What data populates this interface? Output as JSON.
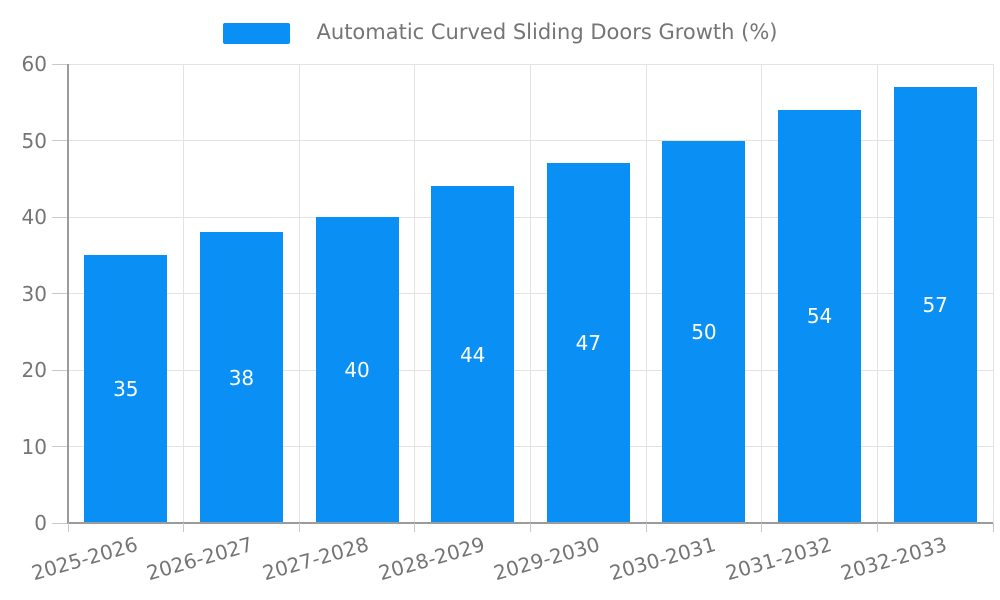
{
  "legend": {
    "label": "Automatic Curved Sliding Doors Growth (%)"
  },
  "chart_data": {
    "type": "bar",
    "title": "Automatic Curved Sliding Doors Growth (%)",
    "series_name": "Automatic Curved Sliding Doors Growth (%)",
    "categories": [
      "2025-2026",
      "2026-2027",
      "2027-2028",
      "2028-2029",
      "2029-2030",
      "2030-2031",
      "2031-2032",
      "2032-2033"
    ],
    "values": [
      35,
      38,
      40,
      44,
      47,
      50,
      54,
      57
    ],
    "data_labels": [
      35,
      38,
      40,
      44,
      47,
      50,
      54,
      57
    ],
    "xlabel": "",
    "ylabel": "",
    "ylim": [
      0,
      60
    ],
    "yticks": [
      0,
      10,
      20,
      30,
      40,
      50,
      60
    ],
    "grid": "on",
    "legend_position": "top-center",
    "data_label_position": "inside-center",
    "xtick_rotation_deg": -16
  },
  "style": {
    "bar_color": "#0A8FF5",
    "grid_color": "#E3E3E3",
    "axis_color": "#9B9B9B",
    "tick_mark_color": "#C9C9C9",
    "text_color": "#757575",
    "data_label_color": "#FFFFFF",
    "background_color": "#FFFFFF"
  }
}
